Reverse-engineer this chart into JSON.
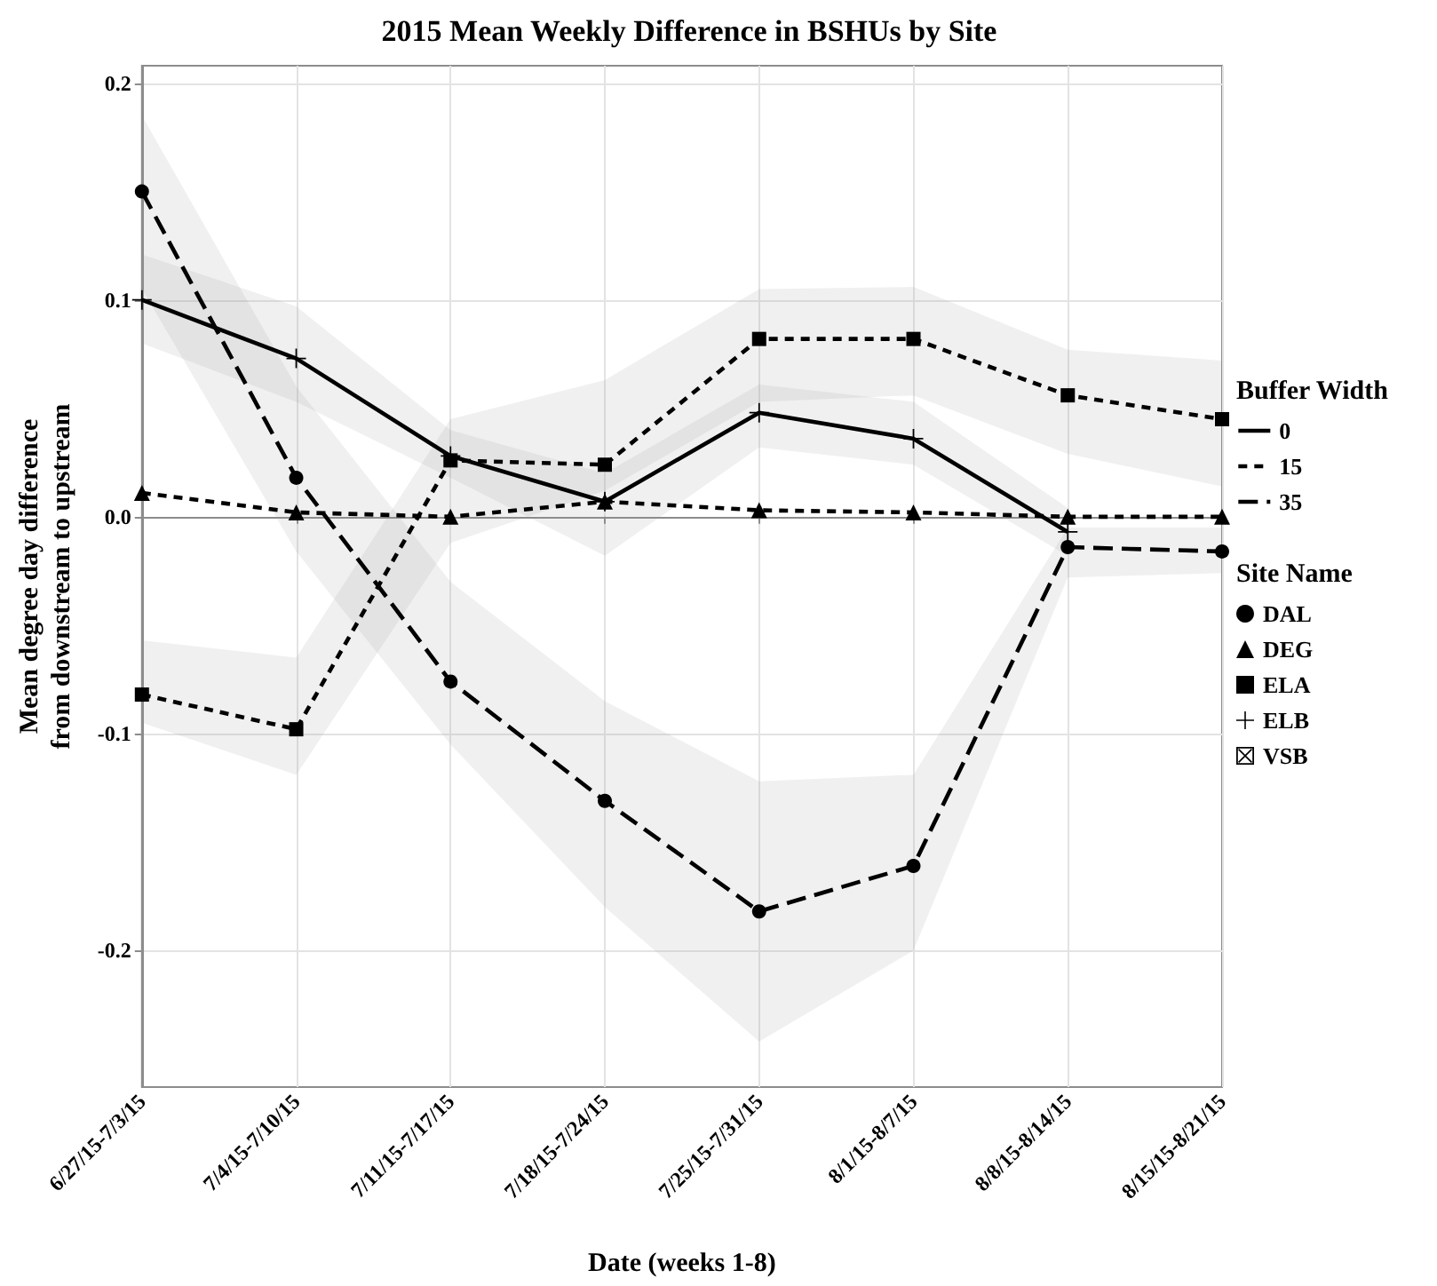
{
  "chart_data": {
    "type": "line",
    "title": "2015 Mean Weekly Difference in BSHUs by Site",
    "xlabel": "Date (weeks 1-8)",
    "ylabel": "Mean degree day difference\nfrom downstream to upstream",
    "legend_title": "Site Name",
    "annotations": [
      "Buffer Width"
    ],
    "categories": [
      "6/27/15-7/3/15",
      "7/4/15-7/10/15",
      "7/11/15-7/17/15",
      "7/18/15-7/24/15",
      "7/25/15-7/31/15",
      "8/1/15-8/7/15",
      "8/8/15-8/14/15",
      "8/15/15-8/21/15"
    ],
    "series": [
      {
        "name": "0",
        "color": "#000000",
        "marker": "none",
        "line_style": "solid",
        "values": [
          null,
          null,
          null,
          null,
          null,
          null,
          null,
          null
        ]
      },
      {
        "name": "15",
        "color": "#000000",
        "marker": "none",
        "line_style": "dotted",
        "values": [
          null,
          null,
          null,
          null,
          null,
          null,
          null,
          null
        ]
      },
      {
        "name": "35",
        "color": "#000000",
        "marker": "none",
        "line_style": "dashed",
        "values": [
          null,
          null,
          null,
          null,
          null,
          null,
          null,
          null
        ]
      },
      {
        "name": "DAL",
        "color": "#000000",
        "marker": "circle",
        "line_style": "dashed",
        "values": [
          0.15,
          0.018,
          -0.076,
          -0.131,
          -0.182,
          -0.161,
          -0.014,
          -0.016
        ],
        "lower": [
          0.105,
          -0.016,
          -0.105,
          -0.18,
          -0.242,
          -0.2,
          -0.028,
          -0.026
        ],
        "upper": [
          0.185,
          0.06,
          -0.03,
          -0.085,
          -0.122,
          -0.119,
          -0.005,
          -0.005
        ]
      },
      {
        "name": "DEG",
        "color": "#000000",
        "marker": "triangle",
        "line_style": "dotted",
        "values": [
          0.011,
          0.002,
          0.0,
          0.007,
          0.003,
          0.002,
          0.0,
          0.0
        ]
      },
      {
        "name": "ELA",
        "color": "#000000",
        "marker": "square",
        "line_style": "dotted",
        "values": [
          -0.082,
          -0.098,
          0.026,
          0.024,
          0.082,
          0.082,
          0.056,
          0.045
        ],
        "lower": [
          -0.095,
          -0.119,
          -0.012,
          0.012,
          0.053,
          0.056,
          0.029,
          0.014
        ],
        "upper": [
          -0.057,
          -0.065,
          0.045,
          0.063,
          0.105,
          0.106,
          0.077,
          0.072
        ]
      },
      {
        "name": "ELB",
        "color": "#000000",
        "marker": "cross",
        "line_style": "solid",
        "values": [
          0.1,
          0.073,
          0.028,
          0.007,
          0.048,
          0.036,
          -0.007,
          null
        ],
        "lower": [
          0.08,
          0.053,
          0.018,
          -0.018,
          0.032,
          0.024,
          -0.018,
          null
        ],
        "upper": [
          0.121,
          0.097,
          0.04,
          0.02,
          0.061,
          0.053,
          0.004,
          null
        ]
      },
      {
        "name": "VSB",
        "color": "#000000",
        "marker": "square-cross",
        "values": [
          null,
          null,
          null,
          null,
          null,
          null,
          null,
          null
        ]
      }
    ],
    "ylim": [
      -0.263,
      0.208
    ],
    "yticks": [
      -0.2,
      -0.1,
      {
        "value": 0,
        "label": "0.0"
      },
      0.1,
      0.2
    ],
    "grid": true,
    "legend": "right"
  }
}
